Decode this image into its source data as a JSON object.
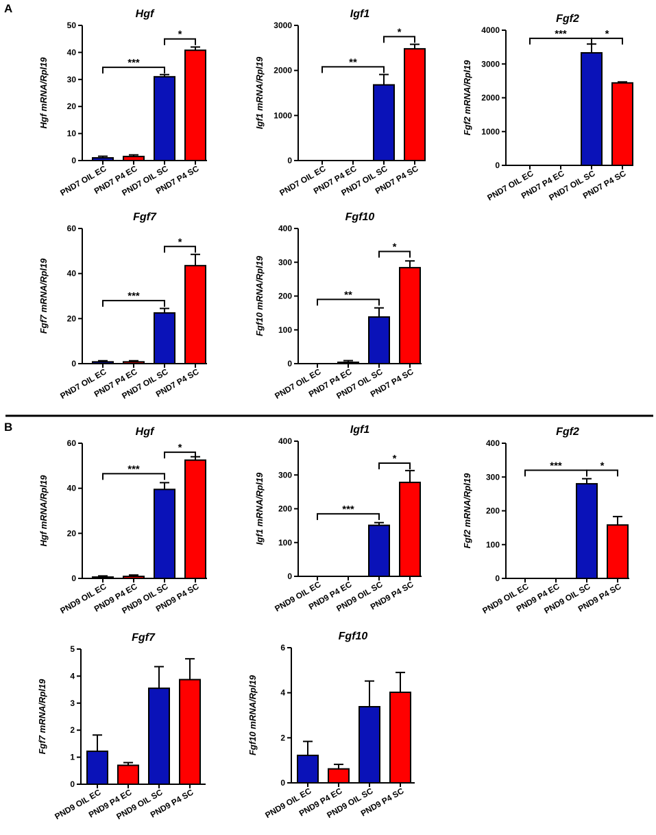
{
  "panels": [
    {
      "label": "A"
    },
    {
      "label": "B"
    }
  ],
  "colors": {
    "blue": "#0a12b8",
    "red": "#ff0000"
  },
  "chart_data": [
    {
      "type": "bar",
      "panel": "A",
      "title": "Hgf",
      "ylabel": "Hgf mRNA/Rpl19",
      "categories": [
        "PND7 OIL EC",
        "PND7 P4 EC",
        "PND7 OIL SC",
        "PND7 P4 SC"
      ],
      "values": [
        1,
        1.5,
        31,
        40.8
      ],
      "errors": [
        0.6,
        0.6,
        0.8,
        1.2
      ],
      "bar_colors": [
        "blue",
        "red",
        "blue",
        "red"
      ],
      "ylim": [
        0,
        50
      ],
      "yticks": [
        0,
        10,
        20,
        30,
        40,
        50
      ],
      "yticklabels": [
        "0",
        "10",
        "20",
        "30",
        "40",
        "50"
      ],
      "brackets": [
        {
          "from": 0,
          "to": 2,
          "y": 34.5,
          "label": "***"
        },
        {
          "from": 2,
          "to": 3,
          "y": 45,
          "label": "*"
        }
      ]
    },
    {
      "type": "bar",
      "panel": "A",
      "title": "Igf1",
      "ylabel": "Igf1 mRNA/Rpl19",
      "categories": [
        "PND7 OIL EC",
        "PND7 P4 EC",
        "PND7 OIL SC",
        "PND7 P4 SC"
      ],
      "values": [
        0,
        0,
        1680,
        2480
      ],
      "errors": [
        0,
        0,
        230,
        100
      ],
      "bar_colors": [
        "blue",
        "red",
        "blue",
        "red"
      ],
      "ylim": [
        0,
        3000
      ],
      "yticks": [
        0,
        1000,
        2000,
        3000
      ],
      "yticklabels": [
        "0",
        "1000",
        "2000",
        "3000"
      ],
      "brackets": [
        {
          "from": 0,
          "to": 2,
          "y": 2080,
          "label": "**"
        },
        {
          "from": 2,
          "to": 3,
          "y": 2750,
          "label": "*"
        }
      ]
    },
    {
      "type": "bar",
      "panel": "A",
      "title": "Fgf2",
      "ylabel": "Fgf2 mRNA/Rpl19",
      "categories": [
        "PND7 OIL EC",
        "PND7 P4 EC",
        "PND7 OIL SC",
        "PND7 P4 SC"
      ],
      "values": [
        0,
        0,
        3330,
        2440
      ],
      "errors": [
        0,
        0,
        260,
        30
      ],
      "bar_colors": [
        "blue",
        "red",
        "blue",
        "red"
      ],
      "ylim": [
        0,
        4000
      ],
      "yticks": [
        0,
        1000,
        2000,
        3000,
        4000
      ],
      "yticklabels": [
        "0",
        "1000",
        "2000",
        "3000",
        "4000"
      ],
      "brackets": [
        {
          "from": 0,
          "to": 2,
          "y": 3760,
          "label": "***"
        },
        {
          "from": 2,
          "to": 3,
          "y": 3760,
          "label": "*"
        }
      ]
    },
    {
      "type": "bar",
      "panel": "A",
      "title": "Fgf7",
      "ylabel": "Fgf7 mRNA/Rpl19",
      "categories": [
        "PND7 OIL EC",
        "PND7 P4 EC",
        "PND7 OIL SC",
        "PND7 P4 SC"
      ],
      "values": [
        0.8,
        0.8,
        22.5,
        43.5
      ],
      "errors": [
        0.5,
        0.5,
        2,
        5
      ],
      "bar_colors": [
        "blue",
        "red",
        "blue",
        "red"
      ],
      "ylim": [
        0,
        60
      ],
      "yticks": [
        0,
        20,
        40,
        60
      ],
      "yticklabels": [
        "0",
        "20",
        "40",
        "60"
      ],
      "brackets": [
        {
          "from": 0,
          "to": 2,
          "y": 28,
          "label": "***"
        },
        {
          "from": 2,
          "to": 3,
          "y": 52,
          "label": "*"
        }
      ]
    },
    {
      "type": "bar",
      "panel": "A",
      "title": "Fgf10",
      "ylabel": "Fgf10 mRNA/Rpl19",
      "categories": [
        "PND7 OIL EC",
        "PND7 P4 EC",
        "PND7 OIL SC",
        "PND7 P4 SC"
      ],
      "values": [
        0,
        4,
        138,
        284
      ],
      "errors": [
        0,
        5,
        27,
        20
      ],
      "bar_colors": [
        "blue",
        "red",
        "blue",
        "red"
      ],
      "ylim": [
        0,
        400
      ],
      "yticks": [
        0,
        100,
        200,
        300,
        400
      ],
      "yticklabels": [
        "0",
        "100",
        "200",
        "300",
        "400"
      ],
      "brackets": [
        {
          "from": 0,
          "to": 2,
          "y": 190,
          "label": "**"
        },
        {
          "from": 2,
          "to": 3,
          "y": 332,
          "label": "*"
        }
      ]
    },
    {
      "type": "bar",
      "panel": "B",
      "title": "Hgf",
      "ylabel": "Hgf mRNA/Rpl19",
      "categories": [
        "PND9 OIL EC",
        "PND9 P4 EC",
        "PND9 OIL SC",
        "PND9 P4 SC"
      ],
      "values": [
        0.6,
        0.9,
        39.5,
        52.5
      ],
      "errors": [
        0.5,
        0.6,
        3,
        1.5
      ],
      "bar_colors": [
        "blue",
        "red",
        "blue",
        "red"
      ],
      "ylim": [
        0,
        60
      ],
      "yticks": [
        0,
        20,
        40,
        60
      ],
      "yticklabels": [
        "0",
        "20",
        "40",
        "60"
      ],
      "brackets": [
        {
          "from": 0,
          "to": 2,
          "y": 46.5,
          "label": "***"
        },
        {
          "from": 2,
          "to": 3,
          "y": 56,
          "label": "*"
        }
      ]
    },
    {
      "type": "bar",
      "panel": "B",
      "title": "Igf1",
      "ylabel": "Igf1 mRNA/Rpl19",
      "categories": [
        "PND9 OIL EC",
        "PND9 P4 EC",
        "PND9 OIL SC",
        "PND9 P4 SC"
      ],
      "values": [
        0,
        0,
        151,
        278
      ],
      "errors": [
        0,
        0,
        8,
        35
      ],
      "bar_colors": [
        "blue",
        "red",
        "blue",
        "red"
      ],
      "ylim": [
        0,
        400
      ],
      "yticks": [
        0,
        100,
        200,
        300,
        400
      ],
      "yticklabels": [
        "0",
        "100",
        "200",
        "300",
        "400"
      ],
      "brackets": [
        {
          "from": 0,
          "to": 2,
          "y": 185,
          "label": "***"
        },
        {
          "from": 2,
          "to": 3,
          "y": 335,
          "label": "*"
        }
      ]
    },
    {
      "type": "bar",
      "panel": "B",
      "title": "Fgf2",
      "ylabel": "Fgf2 mRNA/Rpl19",
      "categories": [
        "PND9 OIL EC",
        "PND9 P4 EC",
        "PND9 OIL SC",
        "PND9 P4 SC"
      ],
      "values": [
        0,
        0,
        280,
        158
      ],
      "errors": [
        0,
        0,
        15,
        25
      ],
      "bar_colors": [
        "blue",
        "red",
        "blue",
        "red"
      ],
      "ylim": [
        0,
        400
      ],
      "yticks": [
        0,
        100,
        200,
        300,
        400
      ],
      "yticklabels": [
        "0",
        "100",
        "200",
        "300",
        "400"
      ],
      "brackets": [
        {
          "from": 0,
          "to": 2,
          "y": 320,
          "label": "***"
        },
        {
          "from": 2,
          "to": 3,
          "y": 320,
          "label": "*"
        }
      ]
    },
    {
      "type": "bar",
      "panel": "B",
      "title": "Fgf7",
      "ylabel": "Fgf7 mRNA/Rpl19",
      "categories": [
        "PND9 OIL EC",
        "PND9 P4 EC",
        "PND9 OIL SC",
        "PND9 P4 SC"
      ],
      "values": [
        1.22,
        0.7,
        3.55,
        3.87
      ],
      "errors": [
        0.6,
        0.1,
        0.8,
        0.77
      ],
      "bar_colors": [
        "blue",
        "red",
        "blue",
        "red"
      ],
      "ylim": [
        0,
        5
      ],
      "yticks": [
        0,
        1,
        2,
        3,
        4,
        5
      ],
      "yticklabels": [
        "0",
        "1",
        "2",
        "3",
        "4",
        "5"
      ],
      "brackets": []
    },
    {
      "type": "bar",
      "panel": "B",
      "title": "Fgf10",
      "ylabel": "Fgf10 mRNA/Rpl19",
      "categories": [
        "PND9 OIL EC",
        "PND9 P4 EC",
        "PND9 OIL SC",
        "PND9 P4 SC"
      ],
      "values": [
        1.22,
        0.62,
        3.38,
        4.02
      ],
      "errors": [
        0.62,
        0.2,
        1.14,
        0.88
      ],
      "bar_colors": [
        "blue",
        "red",
        "blue",
        "red"
      ],
      "ylim": [
        0,
        6
      ],
      "yticks": [
        0,
        2,
        4,
        6
      ],
      "yticklabels": [
        "0",
        "2",
        "4",
        "6"
      ],
      "brackets": []
    }
  ]
}
